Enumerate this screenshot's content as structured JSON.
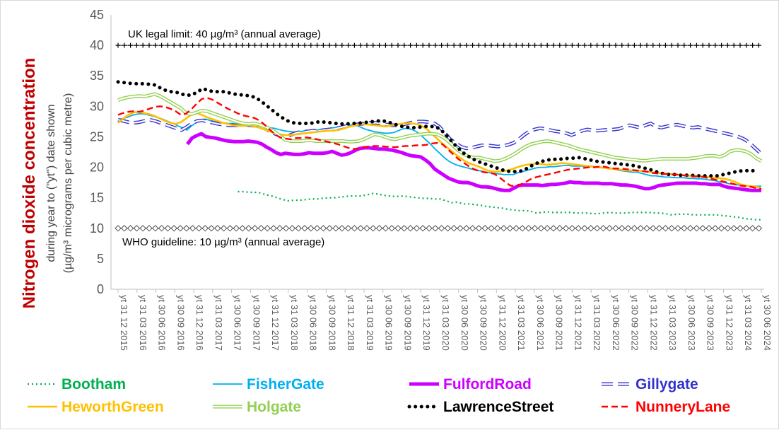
{
  "chart_data": {
    "type": "line",
    "title": "",
    "ylabel": "Nitrogen dioxide concentration",
    "ylabel_sub1": "during year to (\"yt\") date shown",
    "ylabel_sub2": "(µg/m³ micrograms per cubic metre)",
    "ylim": [
      0,
      45
    ],
    "yticks": [
      "0",
      "5",
      "10",
      "15",
      "20",
      "25",
      "30",
      "35",
      "40",
      "45"
    ],
    "grid": false,
    "legend_position": "bottom",
    "x_start": "2015-12",
    "x_end": "2024-06",
    "x_ticks": [
      "yt 31 12 2015",
      "yt 31 03 2016",
      "yt 30 06 2016",
      "yt 30 09 2016",
      "yt 31 12 2016",
      "yt 31 03 2017",
      "yt 30 06 2017",
      "yt 30 09 2017",
      "yt 31 12 2017",
      "yt 31 03 2018",
      "yt 30 06 2018",
      "yt 30 09 2018",
      "yt 31 12 2018",
      "yt 31 03 2019",
      "yt 30 06 2019",
      "yt 30 09 2019",
      "yt 31 12 2019",
      "yt 31 03 2020",
      "yt 30 06 2020",
      "yt 30 09 2020",
      "yt 31 12 2020",
      "yt 31 03 2021",
      "yt 30 06 2021",
      "yt 30 09 2021",
      "yt 31 12 2021",
      "yt 31 03 2022",
      "yt 30 06 2022",
      "yt 30 09 2022",
      "yt 31 12 2022",
      "yt 31 03 2023",
      "yt 30 06 2023",
      "yt 30 09 2023",
      "yt 31 12 2023",
      "yt 31 03 2024",
      "yt 30 06 2024"
    ],
    "reference_lines": [
      {
        "name": "UK legal limit",
        "value": 40,
        "label": "UK legal limit:  40 µg/m³ (annual average)",
        "color": "#000000",
        "marker": "plus"
      },
      {
        "name": "WHO guideline",
        "value": 10,
        "label": "WHO guideline:  10 µg/m³ (annual average)",
        "color": "#000000",
        "marker": "diamond-open"
      }
    ],
    "series": [
      {
        "name": "Bootham",
        "color": "#00b050",
        "style": "dotted",
        "start": "2017-07",
        "end": "2024-06",
        "values": [
          16.0,
          16.0,
          15.9,
          15.9,
          15.8,
          15.5,
          15.3,
          15.0,
          14.7,
          14.5,
          14.6,
          14.6,
          14.7,
          14.8,
          14.8,
          14.9,
          15.0,
          15.0,
          15.1,
          15.2,
          15.3,
          15.3,
          15.3,
          15.5,
          15.7,
          15.6,
          15.4,
          15.3,
          15.2,
          15.3,
          15.2,
          15.1,
          15.0,
          14.9,
          14.9,
          14.8,
          14.8,
          14.5,
          14.2,
          14.3,
          14.0,
          14.0,
          13.9,
          13.8,
          13.6,
          13.5,
          13.4,
          13.3,
          13.1,
          13.0,
          12.9,
          12.9,
          12.8,
          12.5,
          12.6,
          12.7,
          12.6,
          12.6,
          12.6,
          12.6,
          12.5,
          12.5,
          12.5,
          12.4,
          12.4,
          12.5,
          12.6,
          12.5,
          12.5,
          12.5,
          12.6,
          12.6,
          12.6,
          12.6,
          12.5,
          12.5,
          12.4,
          12.2,
          12.3,
          12.3,
          12.3,
          12.2,
          12.2,
          12.2,
          12.2,
          12.2,
          12.1,
          12.0,
          11.9,
          11.8,
          11.6,
          11.5,
          11.4,
          11.4
        ]
      },
      {
        "name": "FisherGate",
        "color": "#00b0f0",
        "style": "solid-thin",
        "start": "2015-12",
        "end": "2024-06",
        "values": [
          27.8,
          28.0,
          28.2,
          28.5,
          28.7,
          28.8,
          28.7,
          28.5,
          28.3,
          28.1,
          27.8,
          27.5,
          27.2,
          26.8,
          26.5,
          26.1,
          26.8,
          27.3,
          27.8,
          27.9,
          27.7,
          27.5,
          27.4,
          27.3,
          27.2,
          27.2,
          27.0,
          26.9,
          26.9,
          26.8,
          26.7,
          26.6,
          26.6,
          26.5,
          26.4,
          26.2,
          26.0,
          25.9,
          25.8,
          25.8,
          25.9,
          26.0,
          26.0,
          26.1,
          26.2,
          26.3,
          26.4,
          26.5,
          26.6,
          26.6,
          26.8,
          27.0,
          26.9,
          26.5,
          26.2,
          26.0,
          25.8,
          25.7,
          25.6,
          25.6,
          25.7,
          26.0,
          26.3,
          26.4,
          26.2,
          25.8,
          25.2,
          24.5,
          23.8,
          23.0,
          22.3,
          21.6,
          21.0,
          20.6,
          20.3,
          20.1,
          19.9,
          19.7,
          19.5,
          19.4,
          19.2,
          19.1,
          19.0,
          18.9,
          18.8,
          18.8,
          18.8,
          19.1,
          19.3,
          19.5,
          19.7,
          19.9,
          20.0,
          20.0,
          20.1,
          20.1,
          20.2,
          20.3,
          20.3,
          20.2,
          20.2,
          20.2,
          20.1,
          20.1,
          20.1,
          20.0,
          20.0,
          19.9,
          19.7,
          19.5,
          19.4,
          19.3,
          19.2,
          19.2,
          19.0,
          18.8,
          18.6,
          18.6,
          18.5,
          18.4,
          18.4,
          18.3,
          18.3,
          18.3,
          18.2,
          18.2,
          18.1,
          18.1,
          18.0,
          17.9,
          17.8,
          17.6,
          17.5,
          17.3,
          17.2,
          17.1,
          17.0,
          17.0,
          16.9,
          16.9,
          16.9
        ]
      },
      {
        "name": "FulfordRoad",
        "color": "#cc00ff",
        "style": "solid-thick",
        "start": "2016-11",
        "end": "2024-06",
        "values": [
          23.8,
          24.8,
          25.2,
          25.5,
          25.0,
          24.9,
          24.8,
          24.6,
          24.4,
          24.3,
          24.2,
          24.2,
          24.2,
          24.3,
          24.2,
          24.1,
          23.8,
          23.3,
          22.9,
          22.4,
          22.1,
          22.3,
          22.2,
          22.1,
          22.1,
          22.2,
          22.4,
          22.3,
          22.3,
          22.3,
          22.4,
          22.6,
          22.3,
          22.0,
          22.1,
          22.4,
          22.8,
          23.1,
          23.2,
          23.2,
          23.1,
          23.0,
          23.0,
          22.9,
          22.8,
          22.6,
          22.4,
          22.1,
          21.9,
          21.8,
          21.7,
          21.2,
          20.6,
          19.7,
          19.2,
          18.7,
          18.2,
          17.9,
          17.6,
          17.5,
          17.5,
          17.3,
          17.0,
          16.8,
          16.8,
          16.7,
          16.5,
          16.3,
          16.2,
          16.2,
          16.6,
          17.0,
          17.1,
          17.1,
          17.1,
          17.1,
          17.0,
          17.1,
          17.2,
          17.2,
          17.3,
          17.4,
          17.6,
          17.5,
          17.5,
          17.4,
          17.4,
          17.4,
          17.4,
          17.3,
          17.3,
          17.3,
          17.2,
          17.1,
          17.1,
          17.0,
          16.9,
          16.7,
          16.5,
          16.5,
          16.7,
          17.0,
          17.1,
          17.2,
          17.3,
          17.4,
          17.4,
          17.4,
          17.4,
          17.4,
          17.3,
          17.3,
          17.2,
          17.2,
          17.2,
          16.9,
          16.7,
          16.6,
          16.5,
          16.4,
          16.3,
          16.2,
          16.2,
          16.2
        ]
      },
      {
        "name": "Gillygate",
        "color": "#3333cc",
        "style": "dashed-double",
        "start": "2015-12",
        "end": "2024-06",
        "values": [
          27.8,
          27.6,
          27.4,
          27.3,
          27.4,
          27.6,
          27.8,
          27.6,
          27.3,
          27.0,
          26.7,
          26.4,
          26.1,
          26.6,
          27.2,
          27.6,
          27.7,
          27.5,
          27.3,
          27.1,
          27.0,
          26.9,
          26.9,
          26.9,
          27.0,
          26.9,
          26.8,
          26.7,
          26.3,
          25.8,
          25.4,
          25.1,
          25.1,
          25.4,
          25.7,
          25.8,
          25.9,
          26.0,
          26.0,
          26.1,
          26.2,
          26.3,
          26.5,
          26.7,
          26.9,
          27.0,
          27.1,
          27.2,
          27.3,
          27.3,
          27.2,
          27.0,
          26.9,
          26.9,
          27.0,
          27.2,
          27.4,
          27.5,
          27.5,
          27.4,
          27.2,
          26.6,
          25.6,
          24.6,
          24.0,
          23.4,
          23.1,
          23.2,
          23.4,
          23.6,
          23.6,
          23.5,
          23.4,
          23.5,
          23.7,
          24.0,
          24.6,
          25.3,
          25.9,
          26.2,
          26.4,
          26.3,
          26.1,
          25.9,
          25.8,
          25.6,
          25.3,
          25.6,
          26.0,
          26.2,
          26.1,
          26.0,
          26.1,
          26.2,
          26.2,
          26.3,
          26.6,
          26.9,
          26.7,
          26.5,
          26.9,
          27.2,
          26.7,
          26.5,
          26.7,
          26.9,
          27.0,
          26.8,
          26.6,
          26.5,
          26.6,
          26.4,
          26.2,
          26.0,
          25.8,
          25.6,
          25.4,
          25.2,
          24.9,
          24.5,
          23.8,
          23.0,
          22.2
        ]
      },
      {
        "name": "HeworthGreen",
        "color": "#ffc000",
        "style": "solid",
        "start": "2015-12",
        "end": "2024-06",
        "values": [
          27.3,
          28.0,
          28.6,
          29.0,
          29.1,
          28.9,
          28.7,
          28.4,
          28.0,
          27.6,
          27.3,
          27.1,
          27.4,
          28.0,
          28.6,
          28.9,
          28.6,
          28.2,
          27.9,
          27.6,
          27.3,
          27.1,
          26.9,
          26.8,
          26.8,
          26.9,
          26.7,
          26.5,
          26.2,
          25.9,
          25.6,
          25.4,
          25.3,
          25.3,
          25.4,
          25.5,
          25.6,
          25.7,
          25.8,
          25.9,
          26.0,
          26.0,
          26.1,
          26.3,
          26.6,
          26.8,
          27.0,
          27.1,
          27.0,
          26.9,
          26.8,
          26.7,
          26.8,
          27.0,
          27.1,
          27.2,
          27.2,
          27.1,
          26.8,
          26.3,
          25.5,
          24.7,
          23.9,
          23.2,
          22.5,
          21.8,
          21.2,
          20.7,
          20.4,
          20.1,
          19.7,
          19.4,
          19.3,
          19.3,
          19.4,
          19.6,
          19.9,
          20.2,
          20.4,
          20.5,
          20.6,
          20.5,
          20.4,
          20.5,
          20.6,
          20.7,
          20.6,
          20.5,
          20.4,
          20.3,
          20.2,
          20.1,
          20.0,
          19.9,
          19.8,
          19.7,
          19.6,
          19.5,
          19.5,
          19.5,
          19.4,
          19.3,
          19.2,
          19.1,
          19.0,
          18.9,
          18.9,
          18.8,
          18.7,
          18.6,
          18.6,
          18.5,
          18.5,
          18.4,
          18.3,
          18.2,
          18.1,
          17.9,
          17.6,
          17.2,
          17.0,
          16.9,
          16.8,
          16.6
        ]
      },
      {
        "name": "Holgate",
        "color": "#92d050",
        "style": "double",
        "start": "2015-12",
        "end": "2024-06",
        "values": [
          31.0,
          31.3,
          31.5,
          31.6,
          31.7,
          31.6,
          31.8,
          32.0,
          31.7,
          31.2,
          30.7,
          30.2,
          29.7,
          28.9,
          28.7,
          29.0,
          29.3,
          29.2,
          28.9,
          28.6,
          28.3,
          28.0,
          27.7,
          27.4,
          27.2,
          27.1,
          27.2,
          27.0,
          26.7,
          26.3,
          25.8,
          25.1,
          24.5,
          24.3,
          24.3,
          24.3,
          24.4,
          24.4,
          24.3,
          24.3,
          24.3,
          24.3,
          24.3,
          24.3,
          24.2,
          24.2,
          24.3,
          24.6,
          25.0,
          25.4,
          25.3,
          25.0,
          24.7,
          24.6,
          24.8,
          25.0,
          25.2,
          25.3,
          25.4,
          25.5,
          25.5,
          25.4,
          25.0,
          24.4,
          23.6,
          22.8,
          22.2,
          21.8,
          21.6,
          21.6,
          21.4,
          21.2,
          21.0,
          21.1,
          21.4,
          21.8,
          22.3,
          22.9,
          23.4,
          23.8,
          24.0,
          24.2,
          24.3,
          24.2,
          24.0,
          23.8,
          23.6,
          23.3,
          23.0,
          22.8,
          22.6,
          22.4,
          22.2,
          22.0,
          21.8,
          21.6,
          21.5,
          21.4,
          21.3,
          21.2,
          21.1,
          21.1,
          21.2,
          21.3,
          21.4,
          21.4,
          21.4,
          21.4,
          21.4,
          21.4,
          21.5,
          21.6,
          21.8,
          21.9,
          21.9,
          21.7,
          22.0,
          22.6,
          22.8,
          22.8,
          22.6,
          22.2,
          21.5,
          21.0
        ]
      },
      {
        "name": "LawrenceStreet",
        "color": "#000000",
        "style": "dotted-round",
        "start": "2015-12",
        "end": "2024-05",
        "values": [
          34.0,
          33.9,
          33.8,
          33.7,
          33.7,
          33.7,
          33.6,
          33.5,
          33.0,
          32.6,
          32.4,
          32.3,
          32.0,
          31.8,
          31.9,
          32.4,
          32.9,
          32.6,
          32.4,
          32.4,
          32.4,
          32.2,
          32.0,
          31.9,
          31.8,
          31.7,
          31.4,
          30.8,
          30.1,
          29.4,
          28.7,
          28.1,
          27.6,
          27.3,
          27.2,
          27.2,
          27.2,
          27.3,
          27.5,
          27.4,
          27.3,
          27.2,
          27.1,
          27.1,
          27.2,
          27.2,
          27.3,
          27.4,
          27.5,
          27.6,
          27.6,
          27.4,
          27.1,
          26.8,
          26.6,
          26.5,
          26.5,
          26.6,
          26.7,
          26.7,
          26.6,
          26.0,
          25.1,
          24.1,
          23.2,
          22.4,
          21.8,
          21.3,
          20.9,
          20.6,
          20.3,
          20.0,
          19.7,
          19.4,
          19.3,
          19.3,
          19.4,
          19.8,
          20.3,
          20.7,
          21.0,
          21.2,
          21.3,
          21.3,
          21.4,
          21.5,
          21.5,
          21.6,
          21.4,
          21.2,
          21.0,
          20.9,
          20.8,
          20.7,
          20.6,
          20.5,
          20.4,
          20.3,
          20.1,
          19.9,
          19.7,
          19.4,
          19.1,
          18.9,
          18.8,
          18.8,
          18.7,
          18.7,
          18.7,
          18.6,
          18.6,
          18.6,
          18.6,
          18.6,
          18.8,
          19.0,
          19.2,
          19.4,
          19.4,
          19.5,
          19.4
        ]
      },
      {
        "name": "NunneryLane",
        "color": "#ff0000",
        "style": "dashed",
        "start": "2015-12",
        "end": "2024-06",
        "values": [
          28.6,
          28.9,
          29.1,
          29.2,
          29.1,
          29.3,
          29.6,
          29.9,
          30.0,
          29.9,
          29.6,
          29.2,
          28.6,
          28.8,
          29.5,
          30.4,
          31.2,
          31.4,
          31.1,
          30.6,
          30.1,
          29.6,
          29.2,
          28.8,
          28.5,
          28.3,
          28.1,
          27.7,
          27.0,
          26.2,
          25.4,
          24.9,
          24.7,
          24.6,
          24.8,
          24.8,
          24.9,
          24.8,
          24.6,
          24.4,
          24.2,
          24.0,
          23.8,
          23.5,
          23.2,
          23.0,
          23.1,
          23.3,
          23.4,
          23.5,
          23.5,
          23.4,
          23.3,
          23.3,
          23.4,
          23.5,
          23.5,
          23.6,
          23.6,
          23.7,
          23.9,
          24.0,
          23.8,
          23.0,
          22.2,
          21.4,
          20.8,
          20.2,
          19.7,
          19.4,
          19.2,
          19.1,
          18.9,
          18.3,
          17.6,
          17.0,
          16.9,
          17.2,
          17.6,
          18.1,
          18.4,
          18.6,
          18.8,
          19.0,
          19.2,
          19.4,
          19.6,
          19.7,
          19.8,
          19.9,
          20.0,
          20.0,
          20.1,
          20.1,
          19.9,
          19.8,
          19.8,
          19.7,
          19.6,
          19.5,
          19.4,
          19.3,
          19.1,
          19.0,
          18.9,
          18.9,
          18.8,
          18.8,
          18.7,
          18.6,
          18.5,
          18.5,
          18.4,
          18.2,
          18.0,
          17.8,
          17.6,
          17.4,
          17.2,
          17.0,
          16.9,
          16.8,
          16.6,
          16.4
        ]
      }
    ]
  }
}
